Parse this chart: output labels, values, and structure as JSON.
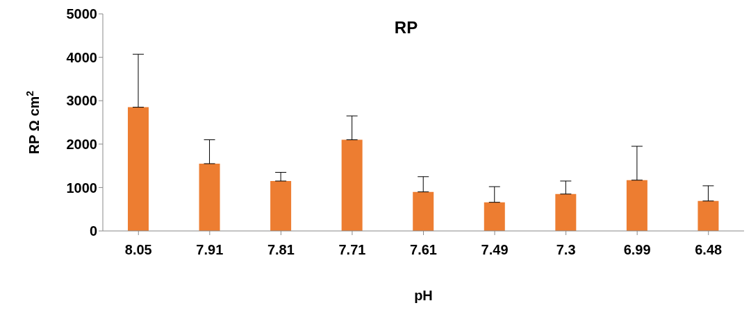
{
  "chart_data": {
    "type": "bar",
    "title": "RP",
    "xlabel": "pH",
    "ylabel": "RP Ω cm$^{2}$",
    "categories": [
      "8.05",
      "7.91",
      "7.81",
      "7.71",
      "7.61",
      "7.49",
      "7.3",
      "6.99",
      "6.48"
    ],
    "values": [
      2850,
      1550,
      1150,
      2100,
      900,
      660,
      850,
      1170,
      690
    ],
    "errors": [
      [
        2850,
        4070
      ],
      [
        1550,
        2100
      ],
      [
        1150,
        1350
      ],
      [
        2100,
        2650
      ],
      [
        900,
        1250
      ],
      [
        660,
        1020
      ],
      [
        850,
        1150
      ],
      [
        1170,
        1950
      ],
      [
        690,
        1040
      ]
    ],
    "color": "#ed7d31",
    "ylim": [
      0,
      5000
    ],
    "yticks": [
      0,
      1000,
      2000,
      3000,
      4000,
      5000
    ],
    "grid": false,
    "legend": false
  }
}
